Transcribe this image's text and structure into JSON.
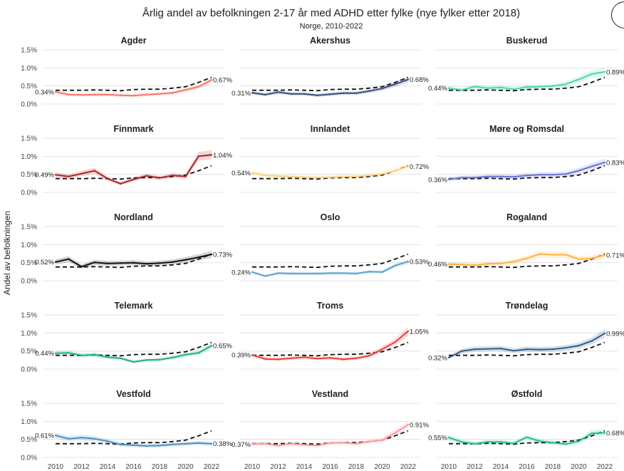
{
  "title": "Årlig andel av befolkningen 2-17 år med ADHD etter fylke (nye fylker etter 2018)",
  "subtitle": "Norge, 2010-2022",
  "chart_data": {
    "type": "line",
    "title": "Årlig andel av befolkningen 2-17 år med ADHD etter fylke (nye fylker etter 2018)",
    "subtitle": "Norge, 2010-2022",
    "xlabel": "",
    "ylabel": "Andel av befolkningen",
    "x": [
      2010,
      2011,
      2012,
      2013,
      2014,
      2015,
      2016,
      2017,
      2018,
      2019,
      2020,
      2021,
      2022
    ],
    "x_ticks": [
      "2010",
      "2012",
      "2014",
      "2016",
      "2018",
      "2020",
      "2022"
    ],
    "ylim": [
      0,
      1.5
    ],
    "y_ticks": [
      "0.0%",
      "0.5%",
      "1.0%",
      "1.5%"
    ],
    "national": {
      "name": "Norge",
      "style": "dashed",
      "values": [
        0.38,
        0.38,
        0.38,
        0.39,
        0.38,
        0.37,
        0.4,
        0.41,
        0.41,
        0.44,
        0.48,
        0.6,
        0.74
      ]
    },
    "panels": [
      {
        "name": "Agder",
        "color": "#F8766D",
        "start_label": "0.34%",
        "end_label": "0.67%",
        "values": [
          0.34,
          0.26,
          0.25,
          0.26,
          0.26,
          0.24,
          0.23,
          0.26,
          0.28,
          0.31,
          0.39,
          0.48,
          0.67
        ]
      },
      {
        "name": "Akershus",
        "color": "#3B4B7A",
        "start_label": "0.31%",
        "end_label": "0.68%",
        "values": [
          0.31,
          0.26,
          0.33,
          0.28,
          0.28,
          0.24,
          0.27,
          0.3,
          0.3,
          0.36,
          0.43,
          0.55,
          0.68
        ]
      },
      {
        "name": "Buskerud",
        "color": "#4DD8A4",
        "start_label": "0.44%",
        "end_label": "0.89%",
        "values": [
          0.44,
          0.39,
          0.48,
          0.44,
          0.46,
          0.41,
          0.47,
          0.48,
          0.5,
          0.55,
          0.68,
          0.83,
          0.89
        ]
      },
      {
        "name": "Finnmark",
        "color": "#B22222",
        "start_label": "0.49%",
        "end_label": "1.04%",
        "values": [
          0.49,
          0.44,
          0.52,
          0.6,
          0.38,
          0.24,
          0.36,
          0.46,
          0.4,
          0.47,
          0.44,
          1.0,
          1.04
        ]
      },
      {
        "name": "Innlandet",
        "color": "#FFD27F",
        "start_label": "0.54%",
        "end_label": "0.72%",
        "values": [
          0.54,
          0.47,
          0.45,
          0.44,
          0.42,
          0.41,
          0.42,
          0.44,
          0.44,
          0.47,
          0.51,
          0.6,
          0.72
        ]
      },
      {
        "name": "Møre og Romsdal",
        "color": "#6B6FD6",
        "start_label": "0.36%",
        "end_label": "0.83%",
        "values": [
          0.36,
          0.41,
          0.41,
          0.44,
          0.44,
          0.43,
          0.47,
          0.49,
          0.49,
          0.51,
          0.6,
          0.72,
          0.83
        ]
      },
      {
        "name": "Nordland",
        "color": "#111111",
        "start_label": "0.52%",
        "end_label": "0.73%",
        "values": [
          0.52,
          0.6,
          0.39,
          0.51,
          0.48,
          0.49,
          0.5,
          0.47,
          0.49,
          0.52,
          0.58,
          0.65,
          0.73
        ]
      },
      {
        "name": "Oslo",
        "color": "#5BA3CF",
        "start_label": "0.24%",
        "end_label": "0.53%",
        "values": [
          0.24,
          0.13,
          0.21,
          0.2,
          0.2,
          0.2,
          0.21,
          0.21,
          0.2,
          0.25,
          0.24,
          0.42,
          0.53
        ]
      },
      {
        "name": "Rogaland",
        "color": "#FFB347",
        "start_label": "0.46%",
        "end_label": "0.71%",
        "values": [
          0.46,
          0.45,
          0.43,
          0.47,
          0.48,
          0.53,
          0.62,
          0.74,
          0.72,
          0.72,
          0.6,
          0.62,
          0.71
        ]
      },
      {
        "name": "Telemark",
        "color": "#1DB37A",
        "start_label": "0.44%",
        "end_label": "0.65%",
        "values": [
          0.44,
          0.45,
          0.38,
          0.4,
          0.33,
          0.3,
          0.2,
          0.25,
          0.26,
          0.32,
          0.4,
          0.45,
          0.65
        ]
      },
      {
        "name": "Troms",
        "color": "#E8413C",
        "start_label": "0.39%",
        "end_label": "1.05%",
        "values": [
          0.39,
          0.28,
          0.27,
          0.3,
          0.33,
          0.29,
          0.31,
          0.27,
          0.3,
          0.37,
          0.55,
          0.75,
          1.05
        ]
      },
      {
        "name": "Trøndelag",
        "color": "#2E5E8C",
        "start_label": "0.32%",
        "end_label": "0.99%",
        "values": [
          0.32,
          0.5,
          0.55,
          0.56,
          0.57,
          0.51,
          0.55,
          0.54,
          0.55,
          0.59,
          0.65,
          0.78,
          0.99
        ]
      },
      {
        "name": "Vestfold",
        "color": "#4A90C2",
        "start_label": "0.61%",
        "end_label": "0.38%",
        "values": [
          0.61,
          0.52,
          0.55,
          0.52,
          0.45,
          0.36,
          0.34,
          0.32,
          0.33,
          0.36,
          0.38,
          0.4,
          0.38
        ]
      },
      {
        "name": "Vestland",
        "color": "#FF9AA2",
        "start_label": "0.37%",
        "end_label": "0.91%",
        "values": [
          0.37,
          0.38,
          0.33,
          0.38,
          0.35,
          0.33,
          0.4,
          0.41,
          0.38,
          0.44,
          0.48,
          0.68,
          0.91
        ]
      },
      {
        "name": "Østfold",
        "color": "#22C08A",
        "start_label": "0.55%",
        "end_label": "0.68%",
        "values": [
          0.55,
          0.43,
          0.38,
          0.43,
          0.43,
          0.39,
          0.56,
          0.45,
          0.41,
          0.37,
          0.45,
          0.67,
          0.68
        ]
      }
    ]
  }
}
